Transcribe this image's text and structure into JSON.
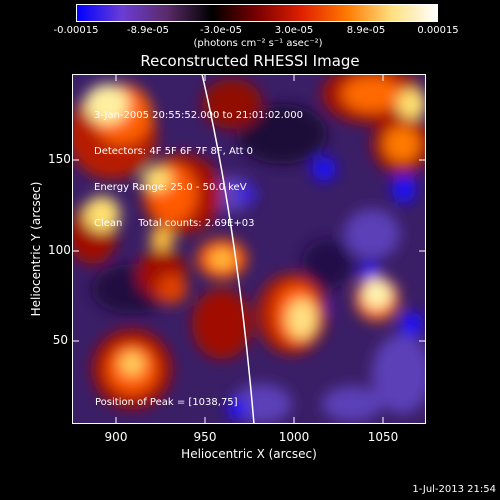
{
  "colorbar": {
    "labels": [
      "-0.00015",
      "-8.9e-05",
      "-3.0e-05",
      "3.0e-05",
      "8.9e-05",
      "0.00015"
    ],
    "unit": "(photons cm⁻² s⁻¹ asec⁻²)",
    "colors": [
      "#0000ff",
      "#6a3dd4",
      "#5a2a6a",
      "#000000",
      "#7a0000",
      "#e02000",
      "#ff7a00",
      "#ffe080",
      "#ffffff"
    ]
  },
  "title": "Reconstructed RHESSI Image",
  "info": {
    "line1": "3-Jan-2005 20:55:52.000 to 21:01:02.000",
    "line2": "Detectors: 4F 5F 6F 7F 8F, Att 0",
    "line3": "Energy Range: 25.0 - 50.0 keV",
    "line4": "Clean     Total counts: 2.69E+03"
  },
  "peak_text": "Position of Peak = [1038,75]",
  "axes": {
    "xlabel": "Heliocentric X (arcsec)",
    "ylabel": "Heliocentric Y (arcsec)",
    "xticks": [
      "900",
      "950",
      "1000",
      "1050"
    ],
    "yticks": [
      "150",
      "100",
      "50"
    ]
  },
  "footer": "1-Jul-2013 21:54"
}
